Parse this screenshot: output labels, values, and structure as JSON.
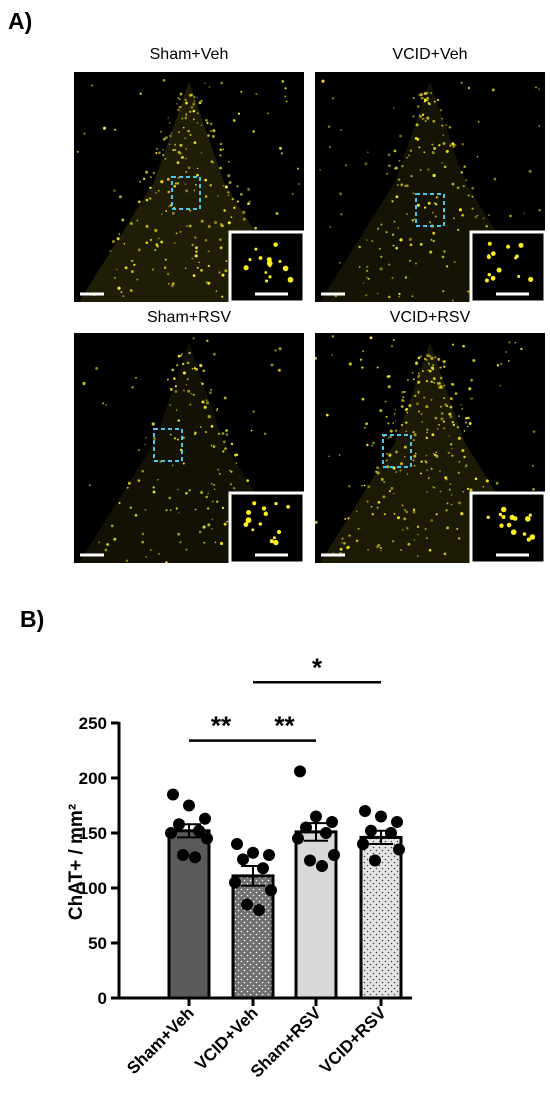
{
  "panel_a": {
    "label": "A)",
    "images": [
      {
        "title": "Sham+Veh",
        "tint": "#1f1d05",
        "density": 260
      },
      {
        "title": "VCID+Veh",
        "tint": "#141304",
        "density": 200
      },
      {
        "title": "Sham+RSV",
        "tint": "#121104",
        "density": 170
      },
      {
        "title": "VCID+RSV",
        "tint": "#1c1a05",
        "density": 320
      }
    ],
    "cell_color": "#ffee22",
    "roi_color": "#46c8e8",
    "inset_border_color": "#ffffff",
    "scale_bar_color": "#ffffff"
  },
  "panel_b": {
    "label": "B)"
  },
  "chart_data": {
    "type": "bar",
    "categories": [
      "Sham+Veh",
      "VCID+Veh",
      "Sham+RSV",
      "VCID+RSV"
    ],
    "values": [
      152,
      111,
      151,
      146
    ],
    "sem": [
      6,
      9,
      8,
      6
    ],
    "points": [
      [
        185,
        175,
        163,
        158,
        152,
        150,
        145,
        130,
        128
      ],
      [
        140,
        132,
        130,
        126,
        118,
        105,
        98,
        85,
        80
      ],
      [
        206,
        165,
        160,
        155,
        150,
        145,
        130,
        125,
        120
      ],
      [
        170,
        165,
        160,
        152,
        150,
        140,
        135,
        125
      ]
    ],
    "bar_colors": [
      "#5a5a5a",
      "#707070",
      "#d8d8d8",
      "#e4e4e4"
    ],
    "bar_patterns": [
      "none",
      "dots-white",
      "none",
      "dots-dark"
    ],
    "ylabel": "ChAT+ / mm²",
    "ylim": [
      0,
      250
    ],
    "yticks": [
      0,
      50,
      100,
      150,
      200,
      250
    ],
    "significance": [
      {
        "from": 0,
        "to": 1,
        "label": "**",
        "y": 234
      },
      {
        "from": 1,
        "to": 2,
        "label": "**",
        "y": 234
      },
      {
        "from": 1,
        "to": 3,
        "label": "*",
        "y": 287
      }
    ]
  }
}
